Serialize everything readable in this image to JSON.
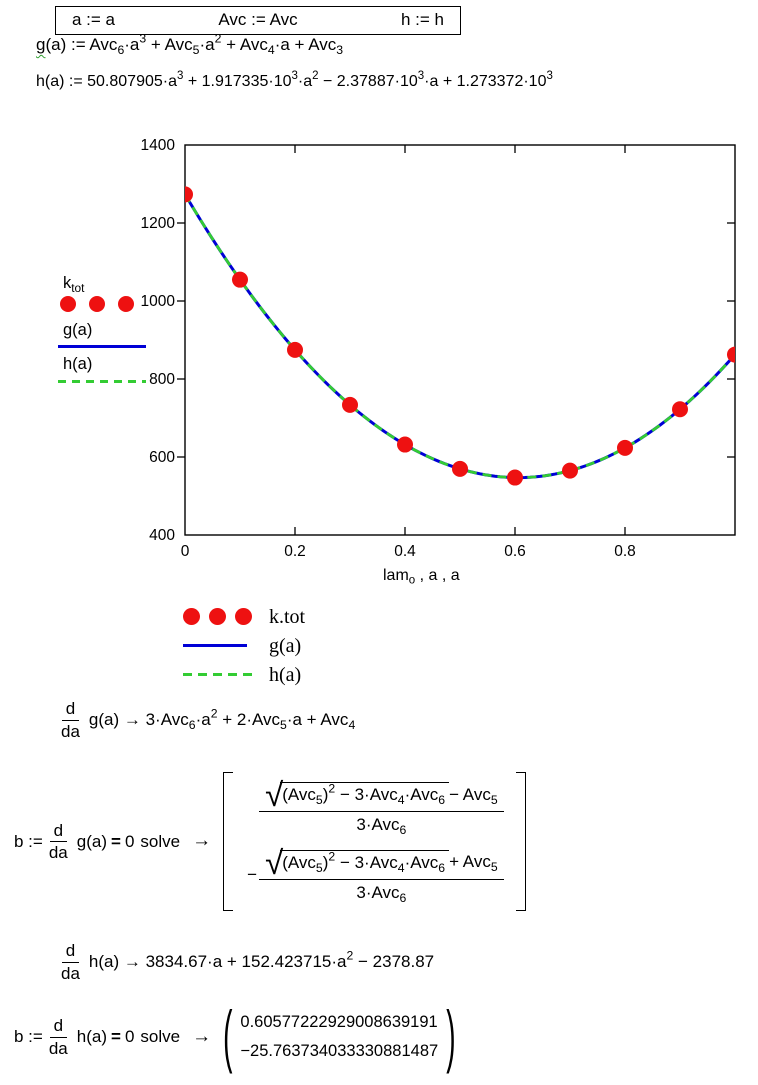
{
  "colors": {
    "red": "#ee1111",
    "blue": "#0000d6",
    "green": "#33cc33",
    "ink": "#000000"
  },
  "symbols": {
    "sqrt": "√",
    "lparen": "(",
    "rparen": ")"
  },
  "definitions_box": {
    "items": [
      "a := a",
      "Avc := Avc",
      "h := h"
    ]
  },
  "math": {
    "g_def": {
      "head": "g",
      "rest": [
        "(a) := Avc",
        {
          "sub": "6"
        },
        "·a",
        {
          "sup": "3"
        },
        " + Avc",
        {
          "sub": "5"
        },
        "·a",
        {
          "sup": "2"
        },
        " + Avc",
        {
          "sub": "4"
        },
        "·a + Avc",
        {
          "sub": "3"
        }
      ]
    },
    "h_def": {
      "tokens": [
        "h(a) := 50.807905·a",
        {
          "sup": "3"
        },
        " + 1.917335·10",
        {
          "sup": "3"
        },
        "·a",
        {
          "sup": "2"
        },
        " − 2.37887·10",
        {
          "sup": "3"
        },
        "·a + 1.273372·10",
        {
          "sup": "3"
        }
      ]
    },
    "deriv": {
      "d": "d",
      "da": "da"
    },
    "deriv_g": {
      "rhs": [
        "g(a)  →  3·Avc",
        {
          "sub": "6"
        },
        "·a",
        {
          "sup": "2"
        },
        " + 2·Avc",
        {
          "sub": "5"
        },
        "·a + Avc",
        {
          "sub": "4"
        }
      ]
    },
    "solve_g": {
      "lead": "b := ",
      "fn": "g(a)",
      "eq": "=",
      "zero": "0",
      "solve": "solve",
      "arrow": "→",
      "rows": [
        {
          "sign": "",
          "sqrt": [
            "(Avc",
            {
              "sub": "5"
            },
            ")",
            {
              "sup": "2"
            },
            " − 3·Avc",
            {
              "sub": "4"
            },
            "·Avc",
            {
              "sub": "6"
            }
          ],
          "after": [
            " − Avc",
            {
              "sub": "5"
            }
          ],
          "den": [
            "3·Avc",
            {
              "sub": "6"
            }
          ]
        },
        {
          "sign": "−",
          "sqrt": [
            "(Avc",
            {
              "sub": "5"
            },
            ")",
            {
              "sup": "2"
            },
            " − 3·Avc",
            {
              "sub": "4"
            },
            "·Avc",
            {
              "sub": "6"
            }
          ],
          "after": [
            " + Avc",
            {
              "sub": "5"
            }
          ],
          "den": [
            "3·Avc",
            {
              "sub": "6"
            }
          ]
        }
      ]
    },
    "deriv_h": {
      "rhs": [
        "h(a)  →  3834.67·a + 152.423715·a",
        {
          "sup": "2"
        },
        " − 2378.87"
      ]
    },
    "solve_h": {
      "lead": "b := ",
      "fn": "h(a)",
      "eq": "=",
      "zero": "0",
      "solve": "solve",
      "arrow": "→",
      "values": [
        "0.60577222929008639191",
        "−25.763734033330881487"
      ]
    }
  },
  "chart_data": {
    "type": "scatter+line",
    "title": "",
    "xlabel_tokens": [
      "lam",
      {
        "sub": "o"
      },
      " , a , a"
    ],
    "x_range": [
      0,
      1.0
    ],
    "y_range": [
      400,
      1400
    ],
    "grid": false,
    "xticks": [
      0,
      0.2,
      0.4,
      0.6,
      0.8
    ],
    "xtick_labels": [
      "0",
      "0.2",
      "0.4",
      "0.6",
      "0.8"
    ],
    "yticks": [
      400,
      600,
      800,
      1000,
      1200,
      1400
    ],
    "ytick_labels": [
      "400",
      "600",
      "800",
      "1000",
      "1200",
      "1400"
    ],
    "series": [
      {
        "name": "k.tot",
        "kind": "scatter",
        "color_key": "red",
        "x": [
          0,
          0.1,
          0.2,
          0.3,
          0.4,
          0.5,
          0.6,
          0.7,
          0.8,
          0.9,
          1.0
        ],
        "y": [
          1273.4,
          1054.7,
          874.7,
          733.6,
          631.9,
          569.6,
          547.3,
          565.1,
          623.4,
          722.5,
          862.6
        ]
      },
      {
        "name": "g(a)",
        "kind": "cubic",
        "style": "solid",
        "color_key": "blue",
        "coeffs": [
          50.807905,
          1917.335,
          -2378.87,
          1273.372
        ]
      },
      {
        "name": "h(a)",
        "kind": "cubic",
        "style": "dashed",
        "color_key": "green",
        "coeffs": [
          50.807905,
          1917.335,
          -2378.87,
          1273.372
        ]
      }
    ]
  },
  "axis_legend": {
    "traces": [
      {
        "tokens": [
          "k",
          {
            "sub": "tot"
          }
        ],
        "marker": "dots"
      },
      {
        "tokens": [
          "g(a)"
        ],
        "marker": "line-blue"
      },
      {
        "tokens": [
          "h(a)"
        ],
        "marker": "dash-green"
      }
    ]
  },
  "legend": {
    "entries": [
      {
        "marker": "dots",
        "label": "k.tot"
      },
      {
        "marker": "line-blue",
        "label": "g(a)"
      },
      {
        "marker": "dash-green",
        "label": "h(a)"
      }
    ]
  }
}
